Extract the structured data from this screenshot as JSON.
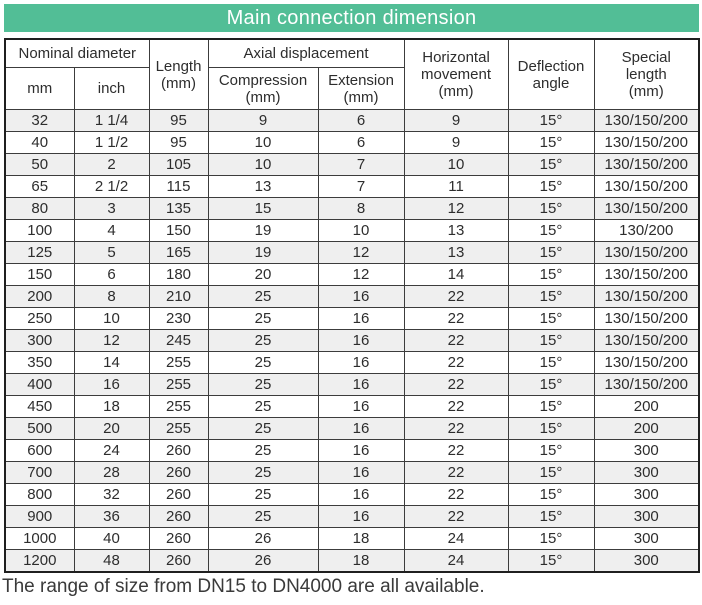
{
  "title": "Main connection dimension",
  "colors": {
    "banner_green": "#52be96",
    "stripe_gray": "#efefef",
    "border_dark": "#3c3c3c"
  },
  "table": {
    "header": {
      "nominal_diameter": "Nominal diameter",
      "mm": "mm",
      "inch": "inch",
      "length_lines": [
        "Length",
        "(mm)"
      ],
      "axial_displacement": "Axial displacement",
      "compression_lines": [
        "Compression",
        "(mm)"
      ],
      "extension_lines": [
        "Extension",
        "(mm)"
      ],
      "horizontal_movement_lines": [
        "Horizontal",
        "movement",
        "(mm)"
      ],
      "deflection_angle_lines": [
        "Deflection",
        "angle"
      ],
      "special_length_lines": [
        "Special",
        "length",
        "(mm)"
      ]
    },
    "rows": [
      [
        "32",
        "1 1/4",
        "95",
        "9",
        "6",
        "9",
        "15°",
        "130/150/200"
      ],
      [
        "40",
        "1 1/2",
        "95",
        "10",
        "6",
        "9",
        "15°",
        "130/150/200"
      ],
      [
        "50",
        "2",
        "105",
        "10",
        "7",
        "10",
        "15°",
        "130/150/200"
      ],
      [
        "65",
        "2 1/2",
        "115",
        "13",
        "7",
        "11",
        "15°",
        "130/150/200"
      ],
      [
        "80",
        "3",
        "135",
        "15",
        "8",
        "12",
        "15°",
        "130/150/200"
      ],
      [
        "100",
        "4",
        "150",
        "19",
        "10",
        "13",
        "15°",
        "130/200"
      ],
      [
        "125",
        "5",
        "165",
        "19",
        "12",
        "13",
        "15°",
        "130/150/200"
      ],
      [
        "150",
        "6",
        "180",
        "20",
        "12",
        "14",
        "15°",
        "130/150/200"
      ],
      [
        "200",
        "8",
        "210",
        "25",
        "16",
        "22",
        "15°",
        "130/150/200"
      ],
      [
        "250",
        "10",
        "230",
        "25",
        "16",
        "22",
        "15°",
        "130/150/200"
      ],
      [
        "300",
        "12",
        "245",
        "25",
        "16",
        "22",
        "15°",
        "130/150/200"
      ],
      [
        "350",
        "14",
        "255",
        "25",
        "16",
        "22",
        "15°",
        "130/150/200"
      ],
      [
        "400",
        "16",
        "255",
        "25",
        "16",
        "22",
        "15°",
        "130/150/200"
      ],
      [
        "450",
        "18",
        "255",
        "25",
        "16",
        "22",
        "15°",
        "200"
      ],
      [
        "500",
        "20",
        "255",
        "25",
        "16",
        "22",
        "15°",
        "200"
      ],
      [
        "600",
        "24",
        "260",
        "25",
        "16",
        "22",
        "15°",
        "300"
      ],
      [
        "700",
        "28",
        "260",
        "25",
        "16",
        "22",
        "15°",
        "300"
      ],
      [
        "800",
        "32",
        "260",
        "25",
        "16",
        "22",
        "15°",
        "300"
      ],
      [
        "900",
        "36",
        "260",
        "25",
        "16",
        "22",
        "15°",
        "300"
      ],
      [
        "1000",
        "40",
        "260",
        "26",
        "18",
        "24",
        "15°",
        "300"
      ],
      [
        "1200",
        "48",
        "260",
        "26",
        "18",
        "24",
        "15°",
        "300"
      ]
    ]
  },
  "caption": "The range of size from DN15 to DN4000 are all available."
}
